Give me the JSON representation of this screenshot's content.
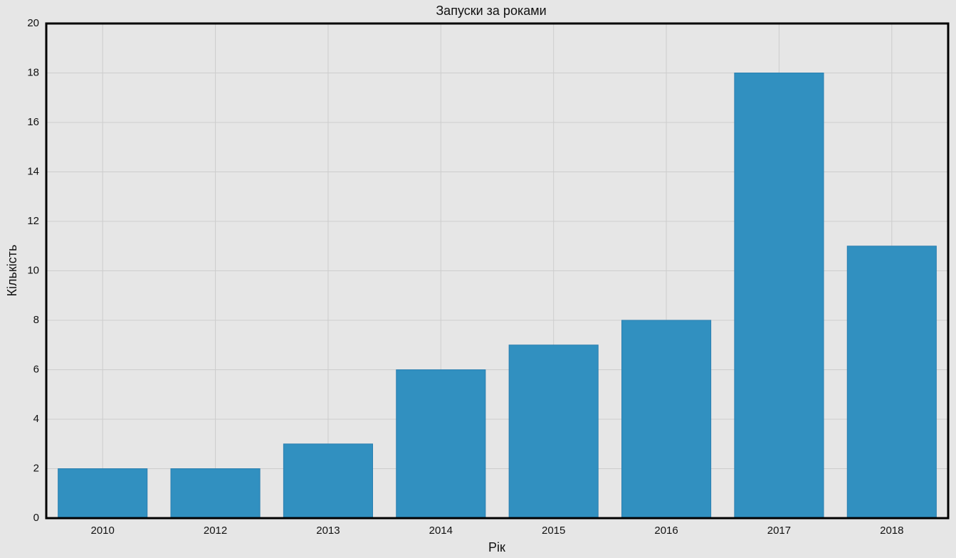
{
  "chart_data": {
    "type": "bar",
    "title": "Запуски за роками",
    "x_label": "Рік",
    "y_label": "Кількість",
    "categories": [
      "2010",
      "2012",
      "2013",
      "2014",
      "2015",
      "2016",
      "2017",
      "2018"
    ],
    "values": [
      2,
      2,
      3,
      6,
      7,
      8,
      18,
      11
    ],
    "color": "#3190c0",
    "ylim": [
      0,
      20
    ],
    "yticks": [
      0,
      2,
      4,
      6,
      8,
      10,
      12,
      14,
      16,
      18,
      20
    ],
    "grid": true
  }
}
